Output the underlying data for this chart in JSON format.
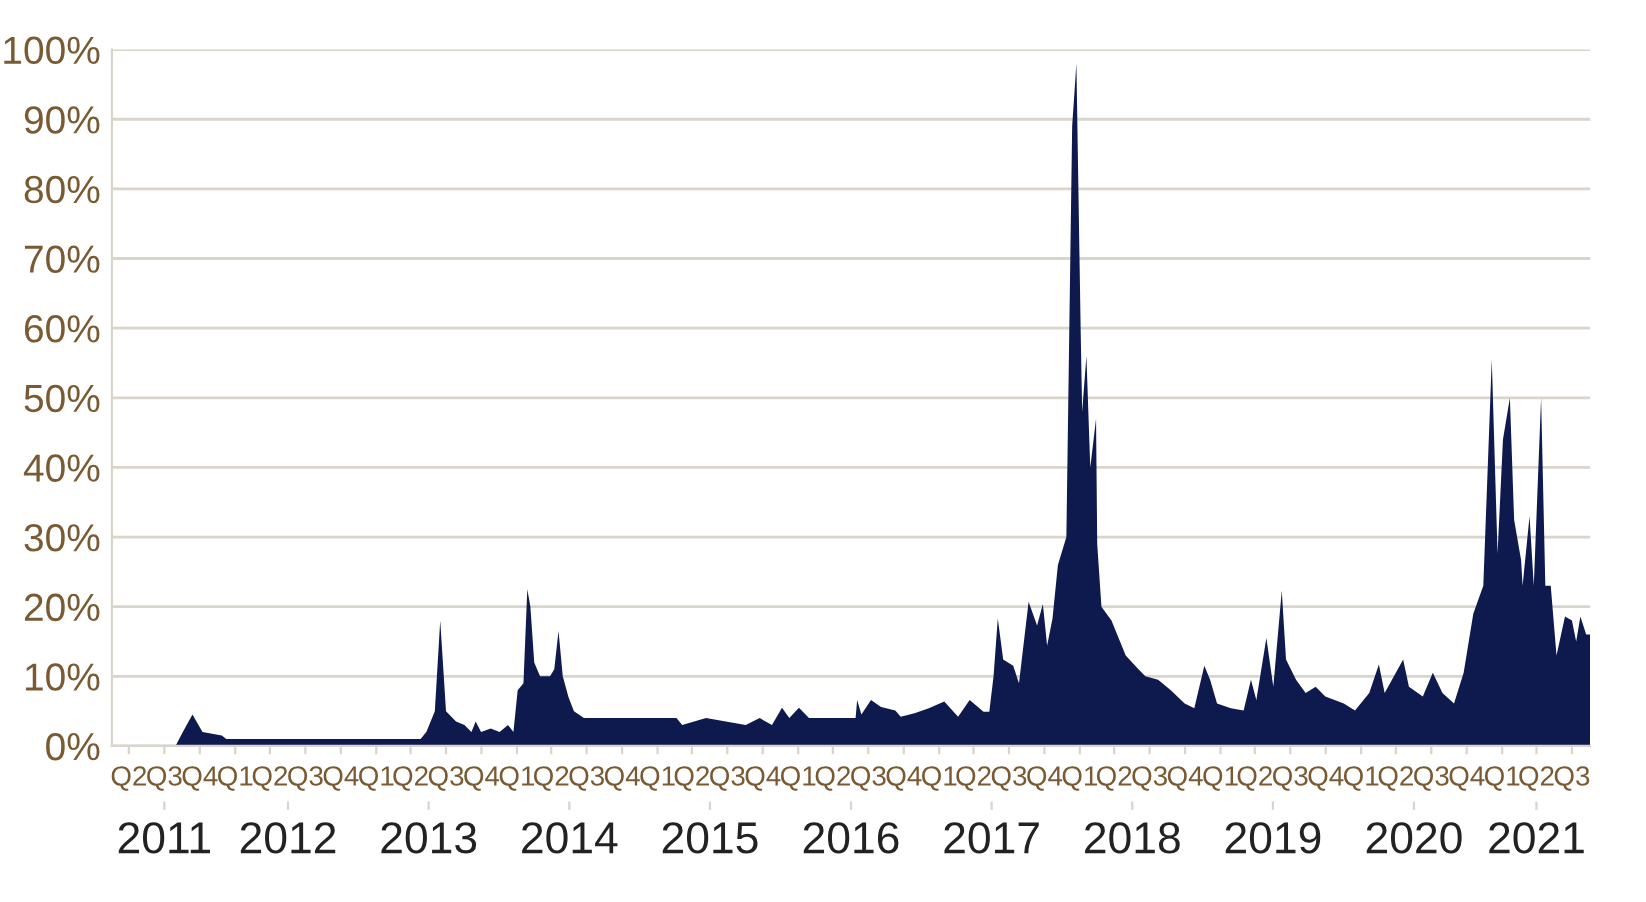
{
  "chart_data": {
    "type": "area",
    "x": [
      "2011-06-21",
      "2011-09-13",
      "2011-10-02",
      "2011-10-27",
      "2011-11-22",
      "2012-01-11",
      "2012-01-23",
      "2013-06-10",
      "2013-06-25",
      "2013-07-17",
      "2013-07-31",
      "2013-08-15",
      "2013-09-10",
      "2013-10-02",
      "2013-10-20",
      "2013-10-31",
      "2013-11-14",
      "2013-12-09",
      "2014-01-01",
      "2014-01-23",
      "2014-02-06",
      "2014-02-17",
      "2014-03-04",
      "2014-03-14",
      "2014-03-22",
      "2014-04-01",
      "2014-04-16",
      "2014-05-12",
      "2014-05-23",
      "2014-06-03",
      "2014-06-14",
      "2014-06-29",
      "2014-07-13",
      "2014-08-08",
      "2015-04-05",
      "2015-04-20",
      "2015-06-21",
      "2015-08-11",
      "2015-10-02",
      "2015-11-07",
      "2015-12-09",
      "2016-01-04",
      "2016-01-23",
      "2016-02-17",
      "2016-03-14",
      "2016-04-01",
      "2016-07-13",
      "2016-07-17",
      "2016-07-28",
      "2016-08-22",
      "2016-09-17",
      "2016-10-24",
      "2016-11-07",
      "2016-12-13",
      "2017-01-19",
      "2017-02-28",
      "2017-04-05",
      "2017-05-05",
      "2017-06-10",
      "2017-06-25",
      "2017-07-06",
      "2017-07-17",
      "2017-07-31",
      "2017-08-26",
      "2017-09-10",
      "2017-10-05",
      "2017-10-27",
      "2017-11-11",
      "2017-11-22",
      "2017-12-06",
      "2017-12-20",
      "2018-01-11",
      "2018-01-26",
      "2018-02-06",
      "2018-02-17",
      "2018-02-21",
      "2018-03-04",
      "2018-03-14",
      "2018-03-29",
      "2018-04-01",
      "2018-04-12",
      "2018-05-08",
      "2018-06-14",
      "2018-07-17",
      "2018-08-04",
      "2018-09-06",
      "2018-10-09",
      "2018-11-14",
      "2018-12-09",
      "2019-01-04",
      "2019-01-19",
      "2019-02-06",
      "2019-03-14",
      "2019-04-16",
      "2019-05-05",
      "2019-05-19",
      "2019-06-14",
      "2019-07-02",
      "2019-07-24",
      "2019-08-04",
      "2019-08-30",
      "2019-09-24",
      "2019-10-20",
      "2019-11-14",
      "2020-01-01",
      "2020-01-30",
      "2020-03-07",
      "2020-04-01",
      "2020-04-16",
      "2020-06-03",
      "2020-06-18",
      "2020-07-24",
      "2020-08-19",
      "2020-09-13",
      "2020-10-13",
      "2020-11-07",
      "2020-12-02",
      "2020-12-28",
      "2021-01-19",
      "2021-02-03",
      "2021-02-17",
      "2021-03-07",
      "2021-03-18",
      "2021-04-05",
      "2021-04-09",
      "2021-04-27",
      "2021-05-08",
      "2021-05-27",
      "2021-06-07",
      "2021-06-21",
      "2021-07-06",
      "2021-07-28",
      "2021-08-15",
      "2021-08-26",
      "2021-09-06",
      "2021-09-21",
      "2021-10-01"
    ],
    "series": [
      {
        "color": "#0e1a4d",
        "values": [
          0,
          0,
          2,
          4.5,
          2,
          1.5,
          1,
          1,
          2,
          5,
          18,
          5,
          3.5,
          3,
          2,
          3.5,
          2,
          2.5,
          2,
          3,
          2,
          8,
          9,
          22.5,
          20,
          12,
          10,
          10,
          11,
          16.5,
          10,
          7,
          5,
          4,
          4,
          3,
          4,
          3.5,
          3,
          4,
          3,
          5.5,
          4,
          5.5,
          4,
          4,
          4,
          6.6,
          4.5,
          6.6,
          5.6,
          5.1,
          4.2,
          4.7,
          5.4,
          6.4,
          4.2,
          6.6,
          4.9,
          4.9,
          10,
          18.3,
          12.4,
          11.5,
          9,
          20.7,
          17.3,
          20.4,
          14.4,
          18.3,
          26,
          30,
          89,
          98,
          60,
          48,
          56,
          40,
          47,
          29,
          20,
          18,
          13,
          11,
          10,
          9.5,
          8,
          6.1,
          5.4,
          11.5,
          9.5,
          6.1,
          5.4,
          5.1,
          9.5,
          6.6,
          15.5,
          8.5,
          22.3,
          12.4,
          9.5,
          7.6,
          8.5,
          7.1,
          6.1,
          5.1,
          7.6,
          11.7,
          7.6,
          12.4,
          8.5,
          7.1,
          10.5,
          7.6,
          6.1,
          10.5,
          19,
          23,
          55.5,
          27.6,
          44,
          50,
          32.5,
          26.7,
          23,
          33,
          23,
          50,
          23,
          23,
          13,
          18.6,
          18,
          15,
          18.6,
          16,
          16
        ]
      }
    ],
    "xlim": [
      "2011-04-01",
      "2021-10-01"
    ],
    "ylim": [
      0,
      100
    ],
    "yticks": [
      {
        "value": 0,
        "label": "0%"
      },
      {
        "value": 10,
        "label": "10%"
      },
      {
        "value": 20,
        "label": "20%"
      },
      {
        "value": 30,
        "label": "30%"
      },
      {
        "value": 40,
        "label": "40%"
      },
      {
        "value": 50,
        "label": "50%"
      },
      {
        "value": 60,
        "label": "60%"
      },
      {
        "value": 70,
        "label": "70%"
      },
      {
        "value": 80,
        "label": "80%"
      },
      {
        "value": 90,
        "label": "90%"
      },
      {
        "value": 100,
        "label": "100%"
      }
    ],
    "xticks": [
      {
        "value": "2011-05-15",
        "label": "Q2"
      },
      {
        "value": "2011-08-15",
        "label": "Q3"
      },
      {
        "value": "2011-11-15",
        "label": "Q4"
      },
      {
        "value": "2012-02-15",
        "label": "Q1"
      },
      {
        "value": "2012-05-15",
        "label": "Q2"
      },
      {
        "value": "2012-08-15",
        "label": "Q3"
      },
      {
        "value": "2012-11-15",
        "label": "Q4"
      },
      {
        "value": "2013-02-15",
        "label": "Q1"
      },
      {
        "value": "2013-05-15",
        "label": "Q2"
      },
      {
        "value": "2013-08-15",
        "label": "Q3"
      },
      {
        "value": "2013-11-15",
        "label": "Q4"
      },
      {
        "value": "2014-02-15",
        "label": "Q1"
      },
      {
        "value": "2014-05-15",
        "label": "Q2"
      },
      {
        "value": "2014-08-15",
        "label": "Q3"
      },
      {
        "value": "2014-11-15",
        "label": "Q4"
      },
      {
        "value": "2015-02-15",
        "label": "Q1"
      },
      {
        "value": "2015-05-15",
        "label": "Q2"
      },
      {
        "value": "2015-08-15",
        "label": "Q3"
      },
      {
        "value": "2015-11-15",
        "label": "Q4"
      },
      {
        "value": "2016-02-15",
        "label": "Q1"
      },
      {
        "value": "2016-05-15",
        "label": "Q2"
      },
      {
        "value": "2016-08-15",
        "label": "Q3"
      },
      {
        "value": "2016-11-15",
        "label": "Q4"
      },
      {
        "value": "2017-02-15",
        "label": "Q1"
      },
      {
        "value": "2017-05-15",
        "label": "Q2"
      },
      {
        "value": "2017-08-15",
        "label": "Q3"
      },
      {
        "value": "2017-11-15",
        "label": "Q4"
      },
      {
        "value": "2018-02-15",
        "label": "Q1"
      },
      {
        "value": "2018-05-15",
        "label": "Q2"
      },
      {
        "value": "2018-08-15",
        "label": "Q3"
      },
      {
        "value": "2018-11-15",
        "label": "Q4"
      },
      {
        "value": "2019-02-15",
        "label": "Q1"
      },
      {
        "value": "2019-05-15",
        "label": "Q2"
      },
      {
        "value": "2019-08-15",
        "label": "Q3"
      },
      {
        "value": "2019-11-15",
        "label": "Q4"
      },
      {
        "value": "2020-02-15",
        "label": "Q1"
      },
      {
        "value": "2020-05-15",
        "label": "Q2"
      },
      {
        "value": "2020-08-15",
        "label": "Q3"
      },
      {
        "value": "2020-11-15",
        "label": "Q4"
      },
      {
        "value": "2021-02-15",
        "label": "Q1"
      },
      {
        "value": "2021-05-15",
        "label": "Q2"
      },
      {
        "value": "2021-08-15",
        "label": "Q3"
      }
    ],
    "x2lim": [
      "2011-04-01",
      "2021-10-01"
    ],
    "x2ticks": [
      {
        "value": "2011-08-15",
        "label": "2011"
      },
      {
        "value": "2012-07-01",
        "label": "2012"
      },
      {
        "value": "2013-07-01",
        "label": "2013"
      },
      {
        "value": "2014-07-01",
        "label": "2014"
      },
      {
        "value": "2015-07-01",
        "label": "2015"
      },
      {
        "value": "2016-07-01",
        "label": "2016"
      },
      {
        "value": "2017-07-01",
        "label": "2017"
      },
      {
        "value": "2018-07-01",
        "label": "2018"
      },
      {
        "value": "2019-07-01",
        "label": "2019"
      },
      {
        "value": "2020-07-01",
        "label": "2020"
      },
      {
        "value": "2021-05-15",
        "label": "2021"
      }
    ],
    "grid": "y"
  }
}
